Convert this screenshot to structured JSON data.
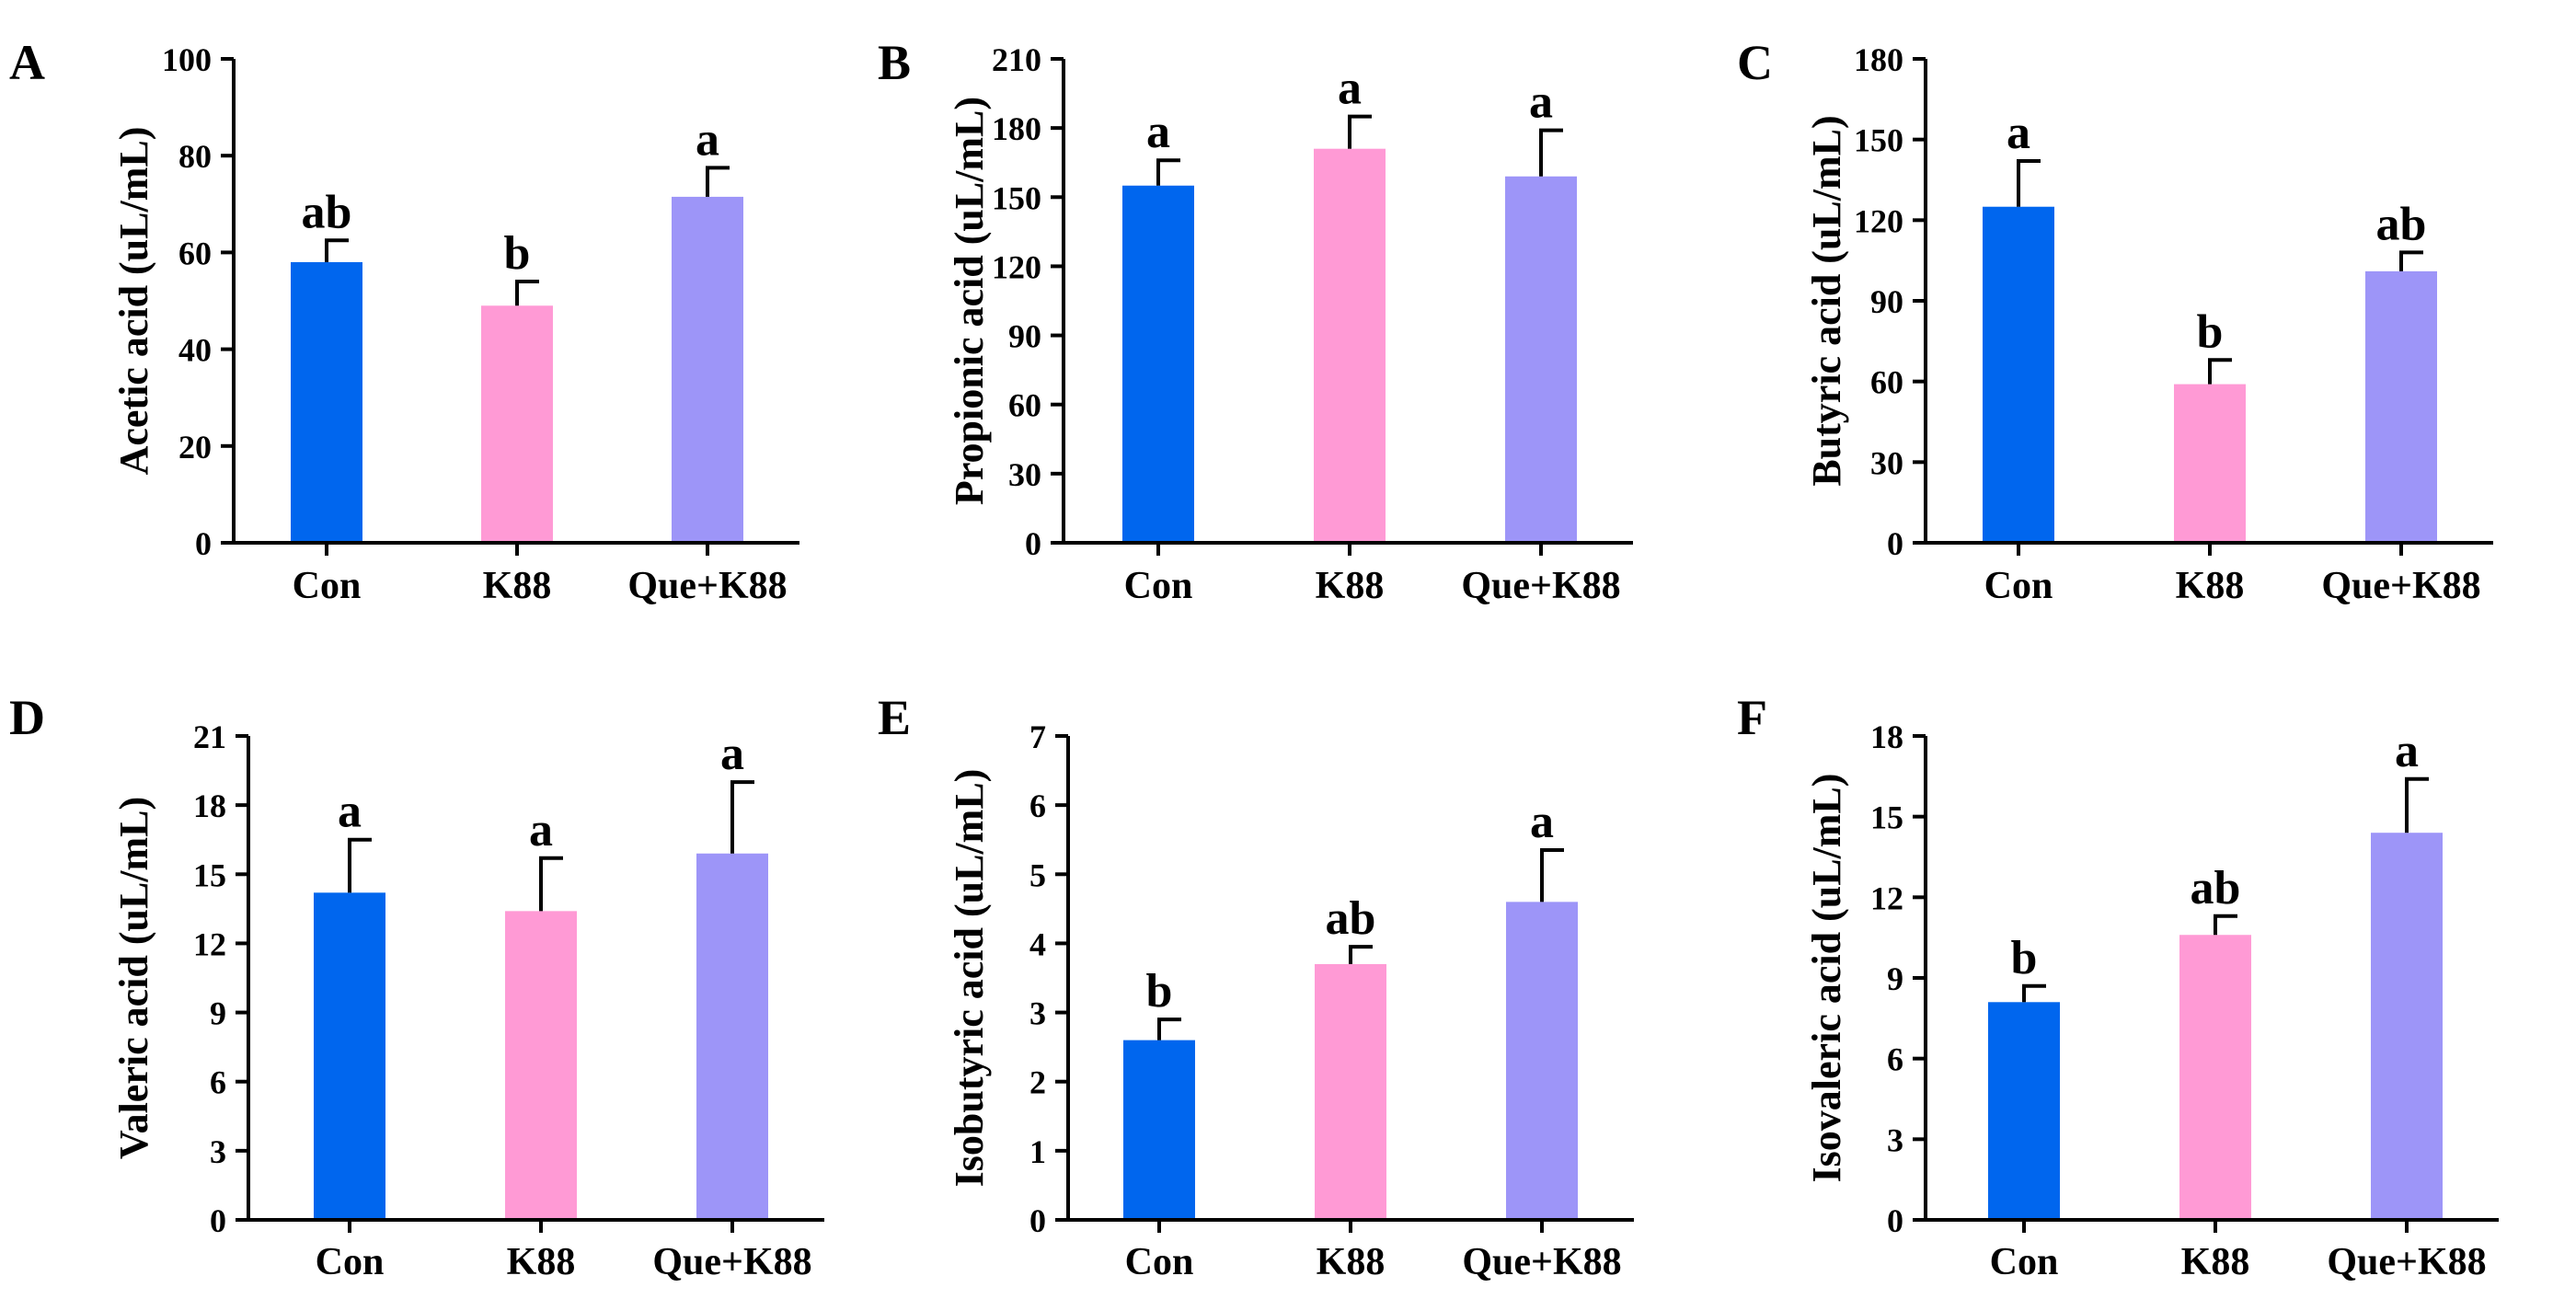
{
  "chart_data": [
    {
      "panel_letter": "A",
      "type": "bar",
      "categories": [
        "Con",
        "K88",
        "Que+K88"
      ],
      "values": [
        58,
        49,
        71.5
      ],
      "errors": [
        4.5,
        5,
        6
      ],
      "significance": [
        "ab",
        "b",
        "a"
      ],
      "ylabel": "Acetic acid (uL/mL)",
      "ylim": [
        0,
        100
      ],
      "yticks": [
        "0",
        "20",
        "40",
        "60",
        "80",
        "100"
      ],
      "colors": [
        "#0066ee",
        "#ff9ad5",
        "#9d95f8"
      ]
    },
    {
      "panel_letter": "B",
      "type": "bar",
      "categories": [
        "Con",
        "K88",
        "Que+K88"
      ],
      "values": [
        155,
        171,
        159
      ],
      "errors": [
        11,
        14,
        20
      ],
      "significance": [
        "a",
        "a",
        "a"
      ],
      "ylabel": "Propionic acid (uL/mL)",
      "ylim": [
        0,
        210
      ],
      "yticks": [
        "0",
        "30",
        "60",
        "90",
        "120",
        "150",
        "180",
        "210"
      ],
      "colors": [
        "#0066ee",
        "#ff9ad5",
        "#9d95f8"
      ]
    },
    {
      "panel_letter": "C",
      "type": "bar",
      "categories": [
        "Con",
        "K88",
        "Que+K88"
      ],
      "values": [
        125,
        59,
        101
      ],
      "errors": [
        17,
        9,
        7
      ],
      "significance": [
        "a",
        "b",
        "ab"
      ],
      "ylabel": "Butyric acid (uL/mL)",
      "ylim": [
        0,
        180
      ],
      "yticks": [
        "0",
        "30",
        "60",
        "90",
        "120",
        "150",
        "180"
      ],
      "colors": [
        "#0066ee",
        "#ff9ad5",
        "#9d95f8"
      ]
    },
    {
      "panel_letter": "D",
      "type": "bar",
      "categories": [
        "Con",
        "K88",
        "Que+K88"
      ],
      "values": [
        14.2,
        13.4,
        15.9
      ],
      "errors": [
        2.3,
        2.3,
        3.1
      ],
      "significance": [
        "a",
        "a",
        "a"
      ],
      "ylabel": "Valeric acid (uL/mL)",
      "ylim": [
        0,
        21
      ],
      "yticks": [
        "0",
        "3",
        "6",
        "9",
        "12",
        "15",
        "18",
        "21"
      ],
      "colors": [
        "#0066ee",
        "#ff9ad5",
        "#9d95f8"
      ]
    },
    {
      "panel_letter": "E",
      "type": "bar",
      "categories": [
        "Con",
        "K88",
        "Que+K88"
      ],
      "values": [
        2.6,
        3.7,
        4.6
      ],
      "errors": [
        0.3,
        0.25,
        0.75
      ],
      "significance": [
        "b",
        "ab",
        "a"
      ],
      "ylabel": "Isobutyric acid (uL/mL)",
      "ylim": [
        0,
        7
      ],
      "yticks": [
        "0",
        "1",
        "2",
        "3",
        "4",
        "5",
        "6",
        "7"
      ],
      "colors": [
        "#0066ee",
        "#ff9ad5",
        "#9d95f8"
      ]
    },
    {
      "panel_letter": "F",
      "type": "bar",
      "categories": [
        "Con",
        "K88",
        "Que+K88"
      ],
      "values": [
        8.1,
        10.6,
        14.4
      ],
      "errors": [
        0.6,
        0.7,
        2
      ],
      "significance": [
        "b",
        "ab",
        "a"
      ],
      "ylabel": "Isovaleric acid (uL/mL)",
      "ylim": [
        0,
        18
      ],
      "yticks": [
        "0",
        "3",
        "6",
        "9",
        "12",
        "15",
        "18"
      ],
      "colors": [
        "#0066ee",
        "#ff9ad5",
        "#9d95f8"
      ]
    }
  ]
}
